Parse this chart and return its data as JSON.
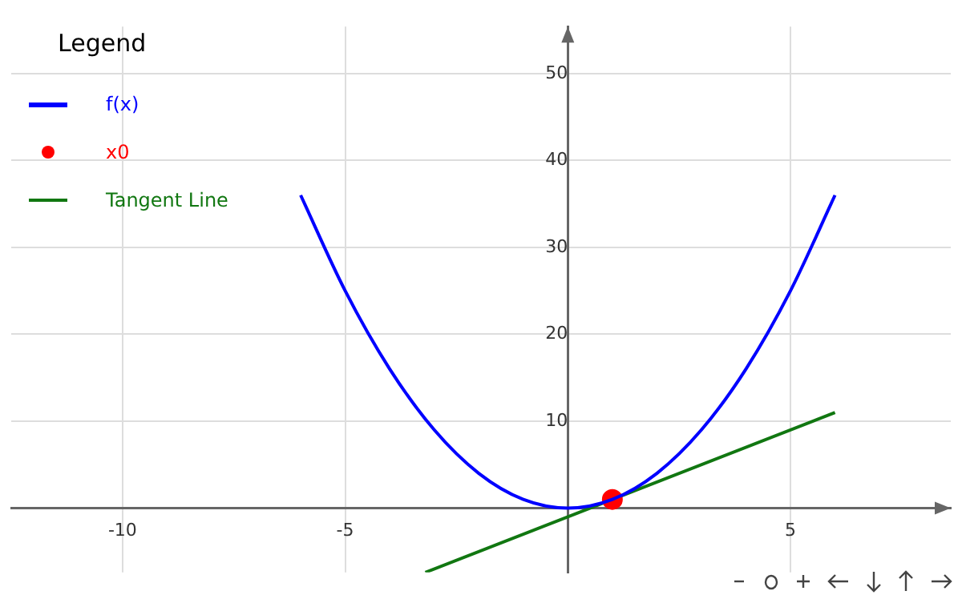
{
  "chart_data": {
    "type": "line",
    "legend_title": "Legend",
    "legend": "top left",
    "grid": true,
    "xlim": [
      -12.5,
      8.6
    ],
    "ylim": [
      -7.4,
      55.4
    ],
    "xticks": [
      -10,
      -5,
      5
    ],
    "yticks": [
      10,
      20,
      30,
      40,
      50
    ],
    "series": [
      {
        "name": "f(x)",
        "type": "line",
        "color": "#0000ff",
        "x": [
          -6,
          -5,
          -4,
          -3,
          -2,
          -1,
          0,
          1,
          2,
          3,
          4,
          5,
          6
        ],
        "values": [
          36,
          25,
          16,
          9,
          4,
          1,
          0,
          1,
          4,
          9,
          16,
          25,
          36
        ]
      },
      {
        "name": "x0",
        "type": "scatter",
        "marker": "circle",
        "color": "#ff0000",
        "x": [
          1
        ],
        "values": [
          1
        ]
      },
      {
        "name": "Tangent Line",
        "type": "line",
        "color": "#117711",
        "x": [
          -3.2,
          6
        ],
        "values": [
          -7.4,
          11
        ]
      }
    ]
  }
}
